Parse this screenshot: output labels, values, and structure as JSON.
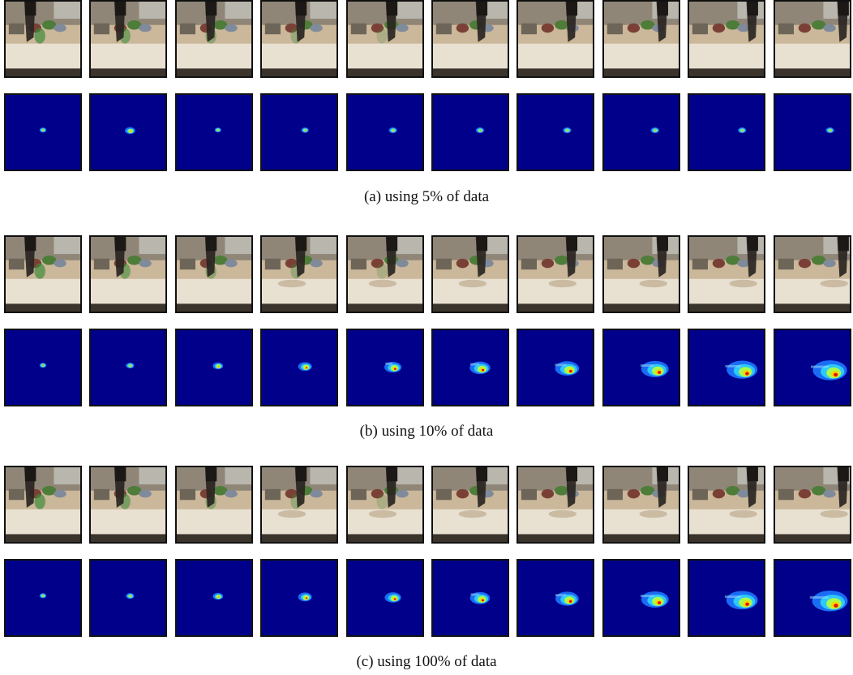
{
  "panels": [
    {
      "caption": "(a) using 5% of data",
      "frame_count": 10,
      "heatmap_activity": [
        0.02,
        0.12,
        0.01,
        0.04,
        0.06,
        0.06,
        0.06,
        0.06,
        0.06,
        0.06
      ]
    },
    {
      "caption": "(b) using 10% of data",
      "frame_count": 10,
      "heatmap_activity": [
        0.02,
        0.06,
        0.12,
        0.22,
        0.32,
        0.42,
        0.52,
        0.62,
        0.72,
        0.82
      ]
    },
    {
      "caption": "(c) using 100% of data",
      "frame_count": 10,
      "heatmap_activity": [
        0.02,
        0.06,
        0.12,
        0.22,
        0.3,
        0.4,
        0.5,
        0.62,
        0.74,
        0.86
      ]
    }
  ],
  "colors": {
    "heatmap_background": "#00008b",
    "table_surface": "#e8e1d2",
    "robot_arm": "#2a2522"
  }
}
